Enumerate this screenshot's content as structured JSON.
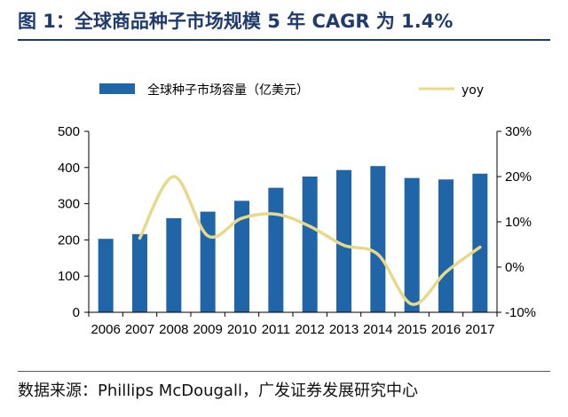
{
  "figure": {
    "title": "图 1：全球商品种子市场规模 5 年 CAGR 为 1.4%",
    "source": "数据来源：Phillips McDougall，广发证券发展研究中心"
  },
  "chart_data": {
    "type": "bar",
    "categories": [
      "2006",
      "2007",
      "2008",
      "2009",
      "2010",
      "2011",
      "2012",
      "2013",
      "2014",
      "2015",
      "2016",
      "2017"
    ],
    "series": [
      {
        "name": "全球种子市场容量（亿美元）",
        "type": "bar",
        "axis": "left",
        "color": "#1f65a8",
        "values": [
          203,
          216,
          260,
          278,
          308,
          344,
          375,
          393,
          404,
          371,
          367,
          383
        ]
      },
      {
        "name": "yoy",
        "type": "line",
        "axis": "right",
        "color": "#e8d98a",
        "values": [
          null,
          6.4,
          20.0,
          6.9,
          10.8,
          11.7,
          9.0,
          4.8,
          2.8,
          -8.2,
          -1.1,
          4.4
        ]
      }
    ],
    "y_left": {
      "ylim": [
        0,
        500
      ],
      "ticks": [
        "0",
        "100",
        "200",
        "300",
        "400",
        "500"
      ]
    },
    "y_right": {
      "ylim": [
        -10,
        30
      ],
      "ticks": [
        "-10%",
        "0%",
        "10%",
        "20%",
        "30%"
      ]
    },
    "grid": false,
    "legend": "top"
  }
}
